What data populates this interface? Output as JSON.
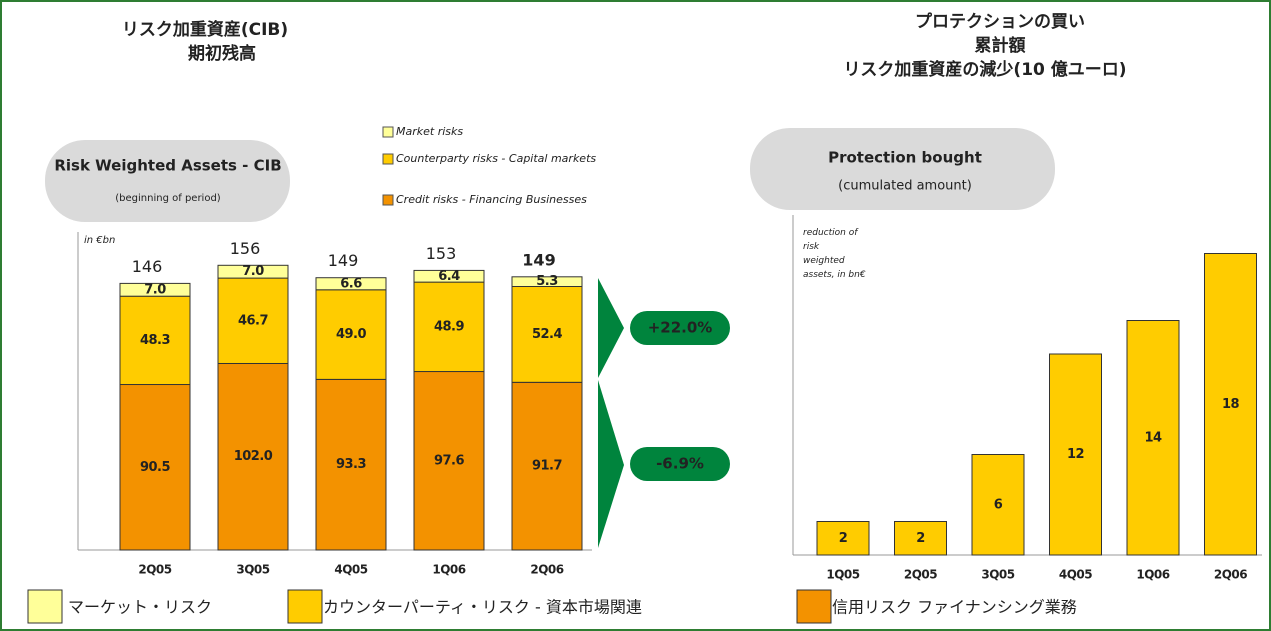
{
  "chart_data": [
    {
      "type": "stacked_bar",
      "jp_title": [
        "リスク加重資産(CIB)",
        "期初残高"
      ],
      "title": "Risk Weighted Assets - CIB",
      "subtitle": "(beginning of period)",
      "unit_label": "in €bn",
      "categories": [
        "2Q05",
        "3Q05",
        "4Q05",
        "1Q06",
        "2Q06"
      ],
      "ylim": [
        0,
        175
      ],
      "series": [
        {
          "name": "Credit risks - Financing Businesses",
          "color": "#f39200",
          "values": [
            90.5,
            102.0,
            93.3,
            97.6,
            91.7
          ],
          "value_labels": [
            "90.5",
            "102.0",
            "93.3",
            "97.6",
            "91.7"
          ]
        },
        {
          "name": "Counterparty risks - Capital markets",
          "color": "#ffcc00",
          "values": [
            48.3,
            46.7,
            49.0,
            48.9,
            52.4
          ],
          "value_labels": [
            "48.3",
            "46.7",
            "49.0",
            "48.9",
            "52.4"
          ]
        },
        {
          "name": "Market risks",
          "color": "#ffff99",
          "values": [
            7.0,
            7.0,
            6.6,
            6.4,
            5.3
          ],
          "value_labels": [
            "7.0",
            "7.0",
            "6.6",
            "6.4",
            "5.3"
          ]
        }
      ],
      "totals": [
        146,
        156,
        149,
        153,
        149
      ],
      "annotations": [
        "+22.0%",
        "-6.9%"
      ],
      "jp_legend": [
        "信用リスク ファイナンシング業務",
        "カウンターパーティ・リスク - 資本市場関連",
        "マーケット・リスク"
      ]
    },
    {
      "type": "bar",
      "jp_title": [
        "プロテクションの買い",
        "累計額",
        "リスク加重資産の減少(10 億ユーロ)"
      ],
      "title": "Protection bought",
      "subtitle": "(cumulated amount)",
      "ylabel": "reduction of risk weighted assets, in bn€",
      "categories": [
        "1Q05",
        "2Q05",
        "3Q05",
        "4Q05",
        "1Q06",
        "2Q06"
      ],
      "values": [
        2,
        2,
        6,
        12,
        14,
        18
      ],
      "color": "#ffcc00",
      "ylim": [
        0,
        20
      ]
    }
  ]
}
